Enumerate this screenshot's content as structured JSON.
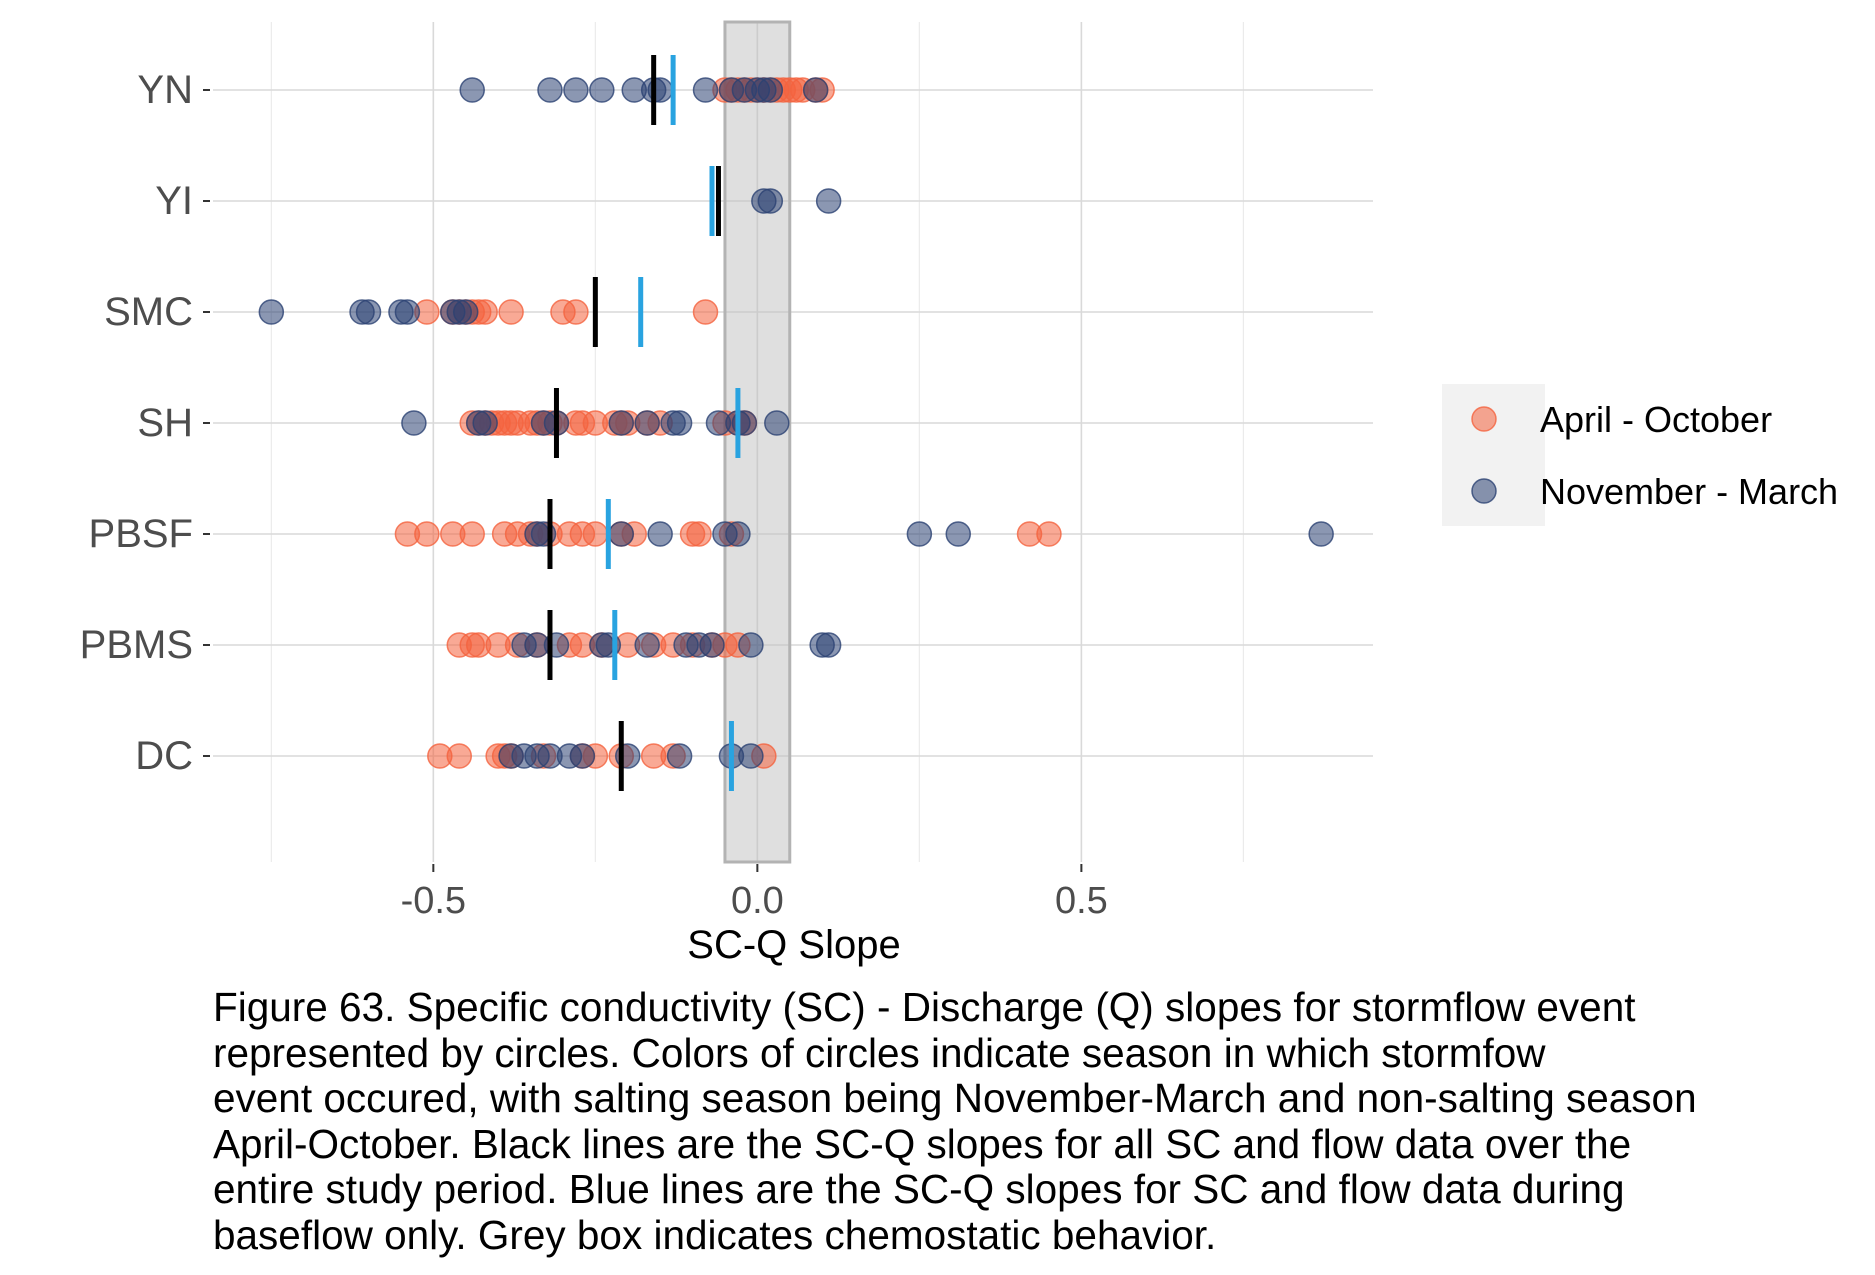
{
  "chart_data": {
    "type": "scatter",
    "title": "",
    "xlabel": "SC-Q Slope",
    "ylabel": "",
    "xlim": [
      -0.84,
      0.95
    ],
    "x_ticks": [
      -0.5,
      0.0,
      0.5
    ],
    "x_tick_labels": [
      "-0.5",
      "0.0",
      "0.5"
    ],
    "x_minor_gridlines": [
      -0.75,
      -0.25,
      0.25,
      0.75
    ],
    "categories": [
      "YN",
      "YI",
      "SMC",
      "SH",
      "PBSF",
      "PBMS",
      "DC"
    ],
    "grid": true,
    "legend_position": "right",
    "chemostatic_band": [
      -0.05,
      0.05
    ],
    "series": [
      {
        "name": "April - October",
        "color": "#f4633e",
        "points": {
          "YN": [
            -0.05,
            -0.04,
            -0.03,
            -0.02,
            -0.01,
            0.0,
            0.01,
            0.02,
            0.03,
            0.04,
            0.05,
            0.06,
            0.07,
            0.09,
            0.1
          ],
          "YI": [],
          "SMC": [
            -0.51,
            -0.47,
            -0.46,
            -0.45,
            -0.44,
            -0.43,
            -0.42,
            -0.38,
            -0.3,
            -0.28,
            -0.08
          ],
          "SH": [
            -0.44,
            -0.43,
            -0.42,
            -0.41,
            -0.4,
            -0.39,
            -0.38,
            -0.37,
            -0.35,
            -0.34,
            -0.33,
            -0.32,
            -0.31,
            -0.28,
            -0.27,
            -0.25,
            -0.22,
            -0.21,
            -0.2,
            -0.17,
            -0.15,
            -0.05,
            -0.03,
            -0.02
          ],
          "PBSF": [
            -0.54,
            -0.51,
            -0.47,
            -0.44,
            -0.39,
            -0.37,
            -0.35,
            -0.34,
            -0.32,
            -0.29,
            -0.27,
            -0.25,
            -0.21,
            -0.19,
            -0.1,
            -0.09,
            -0.04,
            0.42,
            0.45
          ],
          "PBMS": [
            -0.46,
            -0.44,
            -0.43,
            -0.4,
            -0.37,
            -0.34,
            -0.29,
            -0.27,
            -0.24,
            -0.2,
            -0.16,
            -0.13,
            -0.1,
            -0.07,
            -0.05,
            -0.03
          ],
          "DC": [
            -0.49,
            -0.46,
            -0.4,
            -0.39,
            -0.38,
            -0.33,
            -0.27,
            -0.25,
            -0.21,
            -0.16,
            -0.13,
            0.01
          ]
        }
      },
      {
        "name": "November - March",
        "color": "#2c4273",
        "points": {
          "YN": [
            -0.44,
            -0.32,
            -0.28,
            -0.24,
            -0.19,
            -0.16,
            -0.15,
            -0.08,
            -0.04,
            -0.02,
            0.0,
            0.01,
            0.02,
            0.09
          ],
          "YI": [
            0.01,
            0.02,
            0.11
          ],
          "SMC": [
            -0.75,
            -0.61,
            -0.6,
            -0.55,
            -0.54,
            -0.47,
            -0.46,
            -0.45
          ],
          "SH": [
            -0.53,
            -0.43,
            -0.42,
            -0.33,
            -0.31,
            -0.21,
            -0.17,
            -0.13,
            -0.12,
            -0.06,
            -0.03,
            -0.02,
            0.03
          ],
          "PBSF": [
            -0.34,
            -0.33,
            -0.21,
            -0.15,
            -0.05,
            -0.03,
            0.25,
            0.31,
            0.87
          ],
          "PBMS": [
            -0.36,
            -0.34,
            -0.31,
            -0.24,
            -0.23,
            -0.17,
            -0.11,
            -0.09,
            -0.07,
            -0.01,
            0.1,
            0.11
          ],
          "DC": [
            -0.38,
            -0.36,
            -0.34,
            -0.32,
            -0.29,
            -0.27,
            -0.2,
            -0.12,
            -0.04,
            -0.01
          ]
        }
      }
    ],
    "reference_lines": [
      {
        "color": "#000000",
        "values": {
          "YN": -0.16,
          "YI": -0.06,
          "SMC": -0.25,
          "SH": -0.31,
          "PBSF": -0.32,
          "PBMS": -0.32,
          "DC": -0.21
        }
      },
      {
        "color": "#29a3e0",
        "values": {
          "YN": -0.13,
          "YI": -0.07,
          "SMC": -0.18,
          "SH": -0.03,
          "PBSF": -0.23,
          "PBMS": -0.22,
          "DC": -0.04
        }
      }
    ]
  },
  "caption_lines": [
    "Figure 63. Specific conductivity (SC) - Discharge (Q) slopes for stormflow event",
    "represented by circles. Colors of circles indicate season in which stormfow",
    "event occured, with salting season being November-March and non-salting season",
    "April-October. Black lines are the SC-Q slopes for all SC and flow data over the",
    "entire study period. Blue lines are the SC-Q slopes for SC and flow data during",
    "baseflow only. Grey box indicates chemostatic behavior."
  ]
}
